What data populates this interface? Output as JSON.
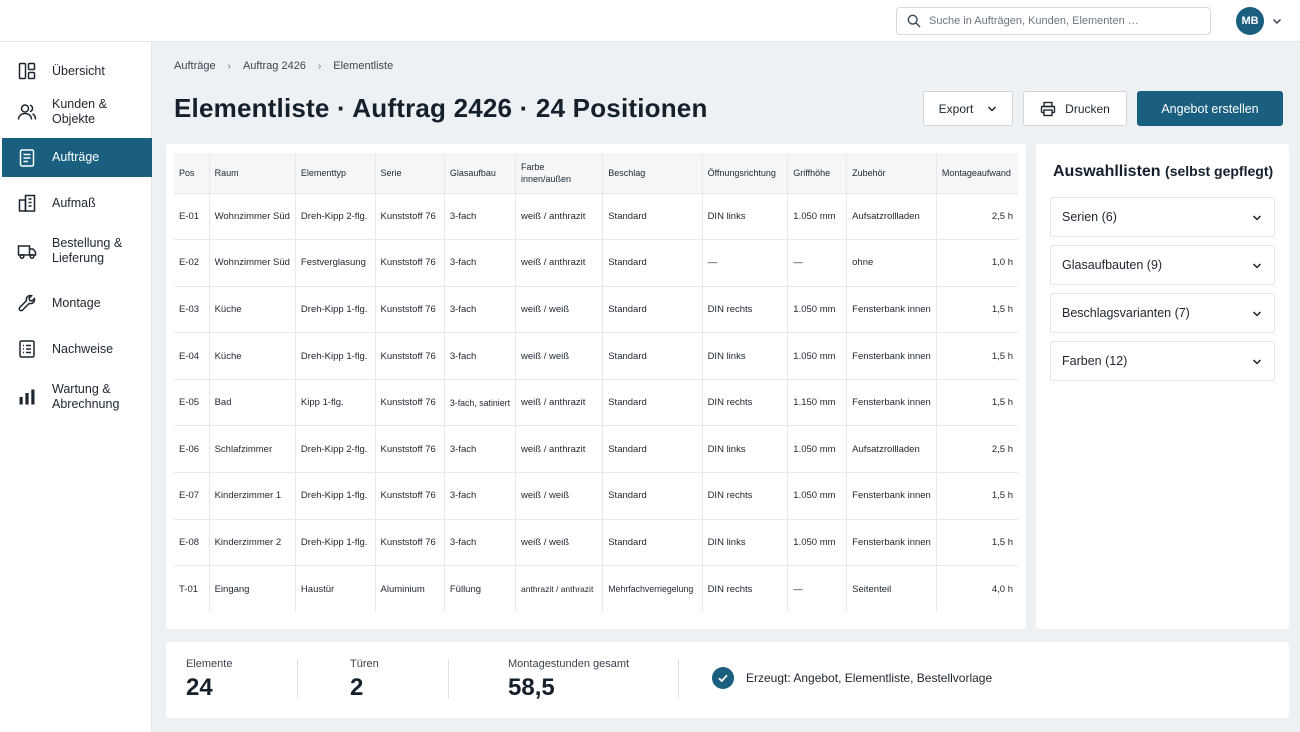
{
  "search": {
    "placeholder": "Suche in Aufträgen, Kunden, Elementen …"
  },
  "user": {
    "initials": "MB"
  },
  "sidebar": {
    "items": [
      {
        "label": "Übersicht",
        "icon": "dashboard-icon"
      },
      {
        "label": "Kunden & Objekte",
        "icon": "users-icon"
      },
      {
        "label": "Aufträge",
        "icon": "document-icon",
        "active": true
      },
      {
        "label": "Aufmaß",
        "icon": "building-icon"
      },
      {
        "label": "Bestellung &\nLieferung",
        "icon": "truck-icon"
      },
      {
        "label": "Montage",
        "icon": "wrench-icon"
      },
      {
        "label": "Nachweise",
        "icon": "list-document-icon"
      },
      {
        "label": "Wartung &\nAbrechnung",
        "icon": "bar-chart-icon"
      }
    ]
  },
  "breadcrumb": [
    "Aufträge",
    "Auftrag 2426",
    "Elementliste"
  ],
  "page": {
    "title": "Elementliste · Auftrag 2426 · 24 Positionen"
  },
  "toolbar": {
    "export_label": "Export",
    "print_label": "Drucken",
    "primary_label": "Angebot erstellen"
  },
  "table": {
    "headers": [
      "Pos",
      "Raum",
      "Elementtyp",
      "Serie",
      "Glasaufbau",
      "Farbe\ninnen/außen",
      "Beschlag",
      "Öffnungsrichtung",
      "Griffhöhe",
      "Zubehör",
      "Montageaufwand"
    ],
    "rows": [
      [
        "E-01",
        "Wohnzimmer Süd",
        "Dreh-Kipp 2-flg.",
        "Kunststoff 76",
        "3-fach",
        "weiß / anthrazit",
        "Standard",
        "DIN links",
        "1.050 mm",
        "Aufsatzrollladen",
        "2,5 h"
      ],
      [
        "E-02",
        "Wohnzimmer Süd",
        "Festverglasung",
        "Kunststoff 76",
        "3-fach",
        "weiß / anthrazit",
        "Standard",
        "—",
        "—",
        "ohne",
        "1,0 h"
      ],
      [
        "E-03",
        "Küche",
        "Dreh-Kipp 1-flg.",
        "Kunststoff 76",
        "3-fach",
        "weiß / weiß",
        "Standard",
        "DIN rechts",
        "1.050 mm",
        "Fensterbank innen",
        "1,5 h"
      ],
      [
        "E-04",
        "Küche",
        "Dreh-Kipp 1-flg.",
        "Kunststoff 76",
        "3-fach",
        "weiß / weiß",
        "Standard",
        "DIN links",
        "1.050 mm",
        "Fensterbank innen",
        "1,5 h"
      ],
      [
        "E-05",
        "Bad",
        "Kipp 1-flg.",
        "Kunststoff 76",
        "3-fach, satiniert",
        "weiß / anthrazit",
        "Standard",
        "DIN rechts",
        "1.150 mm",
        "Fensterbank innen",
        "1,5 h"
      ],
      [
        "E-06",
        "Schlafzimmer",
        "Dreh-Kipp 2-flg.",
        "Kunststoff 76",
        "3-fach",
        "weiß / anthrazit",
        "Standard",
        "DIN links",
        "1.050 mm",
        "Aufsatzrollladen",
        "2,5 h"
      ],
      [
        "E-07",
        "Kinderzimmer 1",
        "Dreh-Kipp 1-flg.",
        "Kunststoff 76",
        "3-fach",
        "weiß / weiß",
        "Standard",
        "DIN rechts",
        "1.050 mm",
        "Fensterbank innen",
        "1,5 h"
      ],
      [
        "E-08",
        "Kinderzimmer 2",
        "Dreh-Kipp 1-flg.",
        "Kunststoff 76",
        "3-fach",
        "weiß / weiß",
        "Standard",
        "DIN links",
        "1.050 mm",
        "Fensterbank innen",
        "1,5 h"
      ],
      [
        "T-01",
        "Eingang",
        "Haustür",
        "Aluminium",
        "Füllung",
        "anthrazit / anthrazit",
        "Mehrfachverriegelung",
        "DIN rechts",
        "—",
        "Seitenteil",
        "4,0 h"
      ]
    ]
  },
  "panel": {
    "title": "Auswahllisten",
    "subtitle": "(selbst gepflegt)",
    "items": [
      "Serien (6)",
      "Glasaufbauten (9)",
      "Beschlagsvarianten (7)",
      "Farben (12)"
    ]
  },
  "stats": {
    "elements_label": "Elemente",
    "elements_value": "24",
    "doors_label": "Türen",
    "doors_value": "2",
    "hours_label": "Montagestunden gesamt",
    "hours_value": "58,5",
    "created_text": "Erzeugt: Angebot, Elementliste, Bestellvorlage"
  },
  "colors": {
    "accent": "#1a5e80",
    "background": "#eef1f4"
  }
}
